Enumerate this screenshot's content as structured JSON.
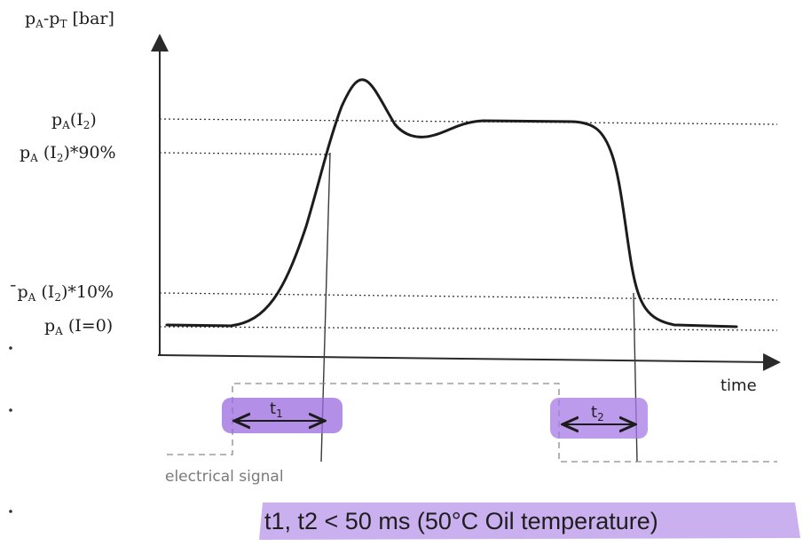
{
  "y_axis_label": "pA-pT [bar]",
  "x_axis_label": "time",
  "levels": [
    {
      "id": "pa_i2",
      "label": "pA(I2)"
    },
    {
      "id": "pa_i2_90",
      "label": "pA (I2)*90%"
    },
    {
      "id": "pa_i2_10",
      "label": "pA (I2)*10%"
    },
    {
      "id": "pa_i0",
      "label": "pA (I=0)"
    }
  ],
  "signal_label": "electrical signal",
  "intervals": [
    {
      "id": "t1",
      "label": "t1"
    },
    {
      "id": "t2",
      "label": "t2"
    }
  ],
  "note": "t1, t2 < 50 ms (50°C Oil temperature)",
  "colors": {
    "highlight": "#9a6ae0",
    "curve": "#1c1c1c",
    "signal": "#8a8a8a"
  }
}
